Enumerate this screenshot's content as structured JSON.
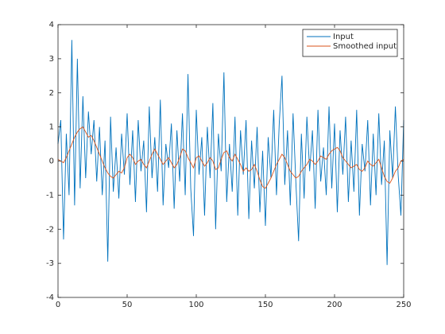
{
  "chart_data": {
    "type": "line",
    "x": [
      0,
      2,
      4,
      6,
      8,
      10,
      12,
      14,
      16,
      18,
      20,
      22,
      24,
      26,
      28,
      30,
      32,
      34,
      36,
      38,
      40,
      42,
      44,
      46,
      48,
      50,
      52,
      54,
      56,
      58,
      60,
      62,
      64,
      66,
      68,
      70,
      72,
      74,
      76,
      78,
      80,
      82,
      84,
      86,
      88,
      90,
      92,
      94,
      96,
      98,
      100,
      102,
      104,
      106,
      108,
      110,
      112,
      114,
      116,
      118,
      120,
      122,
      124,
      126,
      128,
      130,
      132,
      134,
      136,
      138,
      140,
      142,
      144,
      146,
      148,
      150,
      152,
      154,
      156,
      158,
      160,
      162,
      164,
      166,
      168,
      170,
      172,
      174,
      176,
      178,
      180,
      182,
      184,
      186,
      188,
      190,
      192,
      194,
      196,
      198,
      200,
      202,
      204,
      206,
      208,
      210,
      212,
      214,
      216,
      218,
      220,
      222,
      224,
      226,
      228,
      230,
      232,
      234,
      236,
      238,
      240,
      242,
      244,
      246,
      248,
      250
    ],
    "series": [
      {
        "name": "Input",
        "color": "#0072bd",
        "values": [
          0.5,
          1.2,
          -2.3,
          0.8,
          -1.0,
          3.55,
          -1.3,
          3.0,
          -0.8,
          1.9,
          -0.5,
          1.45,
          0.2,
          1.2,
          -0.6,
          1.0,
          -1.0,
          0.6,
          -2.95,
          1.3,
          -0.9,
          0.4,
          -1.1,
          0.8,
          -0.4,
          1.4,
          -0.7,
          0.9,
          -1.2,
          1.2,
          -0.3,
          0.6,
          -1.5,
          1.6,
          -0.5,
          0.7,
          -0.9,
          1.8,
          -1.3,
          0.5,
          -0.2,
          1.1,
          -1.4,
          0.9,
          -0.6,
          1.4,
          -1.0,
          2.55,
          -0.8,
          -2.2,
          1.5,
          -0.4,
          0.7,
          -1.6,
          1.0,
          -0.5,
          1.7,
          -2.0,
          0.8,
          -0.3,
          2.6,
          -1.2,
          0.5,
          -0.9,
          1.3,
          -1.6,
          0.9,
          -0.4,
          1.2,
          -1.7,
          0.6,
          -0.8,
          1.0,
          -1.5,
          0.3,
          -1.9,
          0.7,
          -0.5,
          1.5,
          -1.0,
          1.1,
          2.5,
          -0.7,
          0.9,
          -1.3,
          1.4,
          -0.6,
          -2.35,
          0.8,
          -1.1,
          1.3,
          -0.3,
          0.9,
          -1.4,
          1.5,
          -0.6,
          0.4,
          -1.0,
          1.6,
          -0.8,
          1.1,
          -1.5,
          0.9,
          -0.4,
          1.3,
          -1.2,
          0.6,
          -0.9,
          1.5,
          -1.6,
          0.5,
          -0.3,
          1.2,
          -1.3,
          0.8,
          -1.0,
          1.4,
          -0.7,
          0.6,
          -3.05,
          0.9,
          -0.5,
          1.6,
          -0.4,
          -1.6,
          1.2
        ]
      },
      {
        "name": "Smoothed input",
        "color": "#d95319",
        "values": [
          0.05,
          0.0,
          -0.05,
          0.1,
          0.3,
          0.5,
          0.7,
          0.85,
          0.95,
          1.0,
          0.85,
          0.7,
          0.75,
          0.6,
          0.4,
          0.2,
          0.0,
          -0.2,
          -0.35,
          -0.45,
          -0.5,
          -0.4,
          -0.3,
          -0.35,
          -0.2,
          0.1,
          0.2,
          0.1,
          -0.1,
          0.0,
          0.05,
          -0.1,
          -0.2,
          0.0,
          0.2,
          0.35,
          0.2,
          0.05,
          -0.1,
          0.0,
          0.1,
          -0.05,
          -0.2,
          -0.1,
          0.1,
          0.35,
          0.3,
          0.1,
          -0.05,
          -0.2,
          0.1,
          0.15,
          0.0,
          -0.15,
          -0.05,
          0.1,
          0.0,
          -0.25,
          -0.2,
          0.05,
          0.25,
          0.3,
          0.1,
          0.0,
          0.2,
          0.05,
          -0.1,
          -0.3,
          -0.2,
          -0.3,
          -0.25,
          -0.1,
          -0.3,
          -0.55,
          -0.75,
          -0.8,
          -0.65,
          -0.5,
          -0.3,
          -0.1,
          0.05,
          0.2,
          0.1,
          -0.1,
          -0.3,
          -0.4,
          -0.5,
          -0.45,
          -0.3,
          -0.2,
          -0.1,
          0.05,
          0.0,
          -0.1,
          0.0,
          0.15,
          0.1,
          0.05,
          0.2,
          0.3,
          0.35,
          0.4,
          0.3,
          0.1,
          0.0,
          -0.1,
          -0.2,
          -0.15,
          -0.1,
          -0.25,
          -0.3,
          -0.2,
          0.0,
          -0.1,
          -0.15,
          -0.05,
          0.05,
          -0.2,
          -0.45,
          -0.6,
          -0.65,
          -0.5,
          -0.3,
          -0.2,
          0.0,
          0.05
        ]
      }
    ],
    "xlim": [
      0,
      250
    ],
    "xticks": [
      0,
      50,
      100,
      150,
      200,
      250
    ],
    "ylim": [
      -4,
      4
    ],
    "yticks": [
      -4,
      -3,
      -2,
      -1,
      0,
      1,
      2,
      3,
      4
    ],
    "legend": "top-right"
  }
}
